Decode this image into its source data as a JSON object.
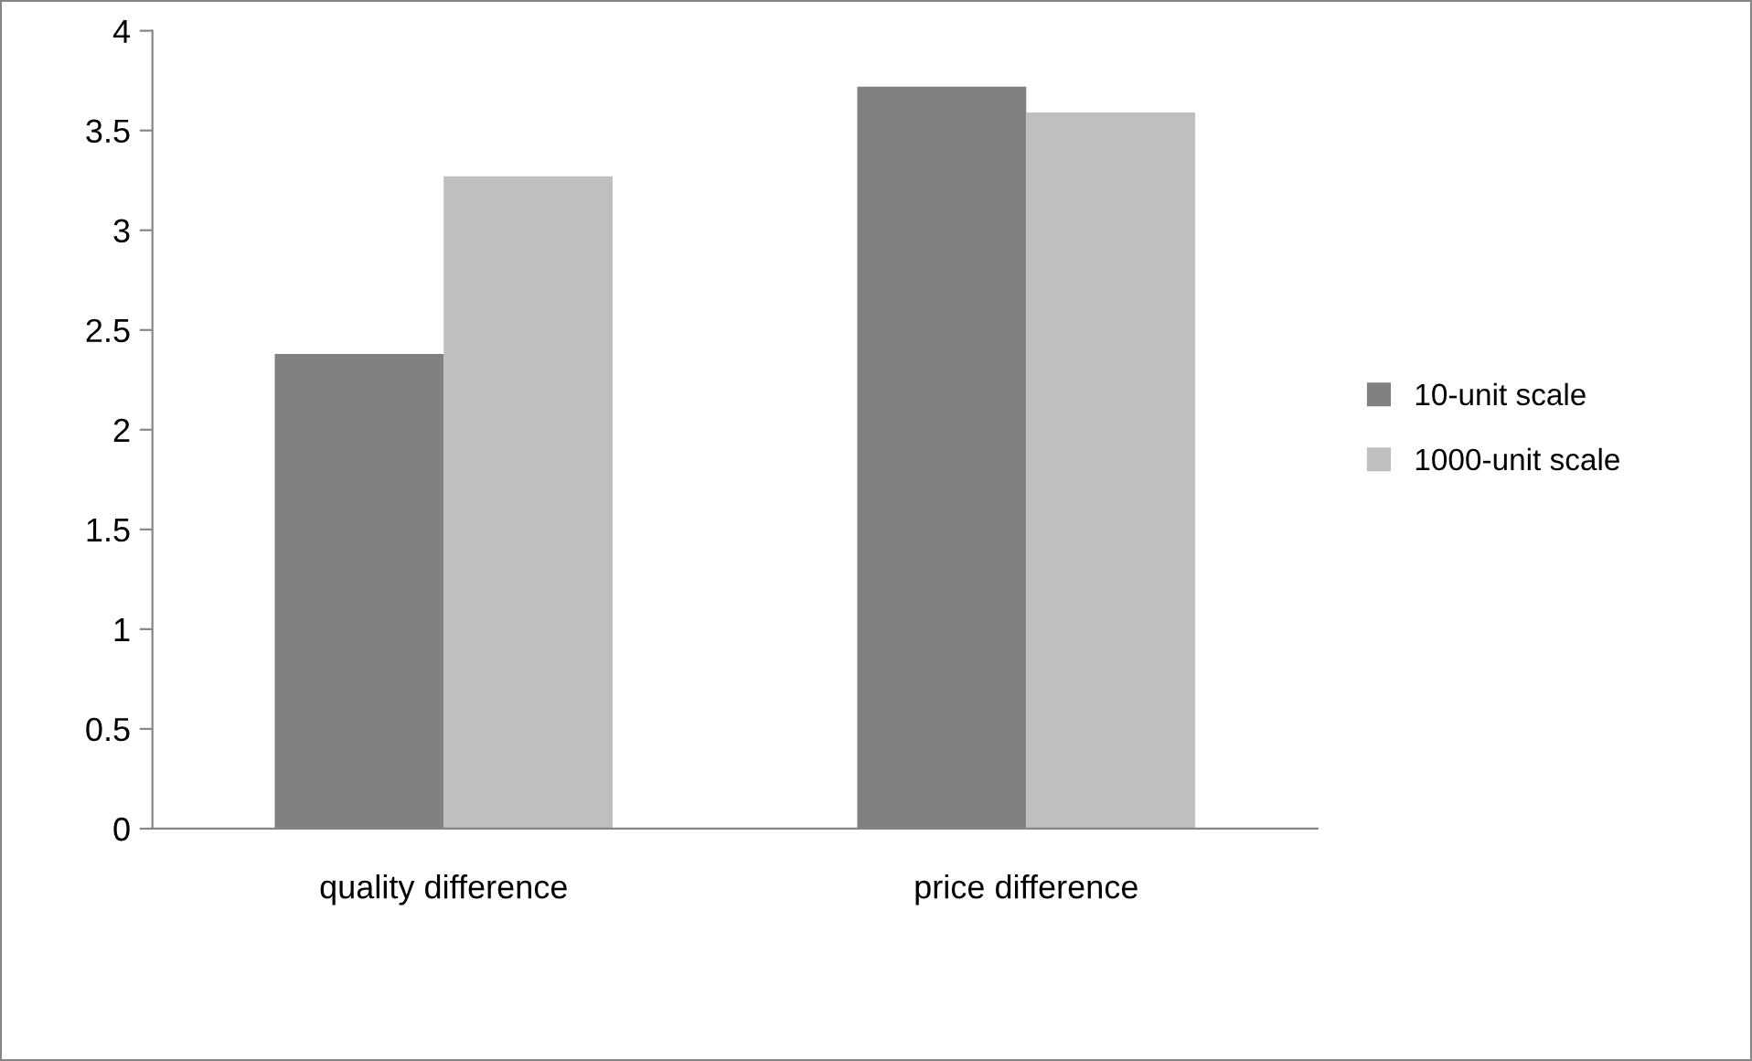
{
  "chart_data": {
    "type": "bar",
    "categories": [
      "quality difference",
      "price difference"
    ],
    "series": [
      {
        "name": "10-unit scale",
        "color": "#808080",
        "values": [
          2.38,
          3.72
        ]
      },
      {
        "name": "1000-unit scale",
        "color": "#bfbfbf",
        "values": [
          3.27,
          3.59
        ]
      }
    ],
    "ylim": [
      0,
      4
    ],
    "yticks": [
      0,
      0.5,
      1,
      1.5,
      2,
      2.5,
      3,
      3.5,
      4
    ],
    "grid": false,
    "legend": "right"
  }
}
